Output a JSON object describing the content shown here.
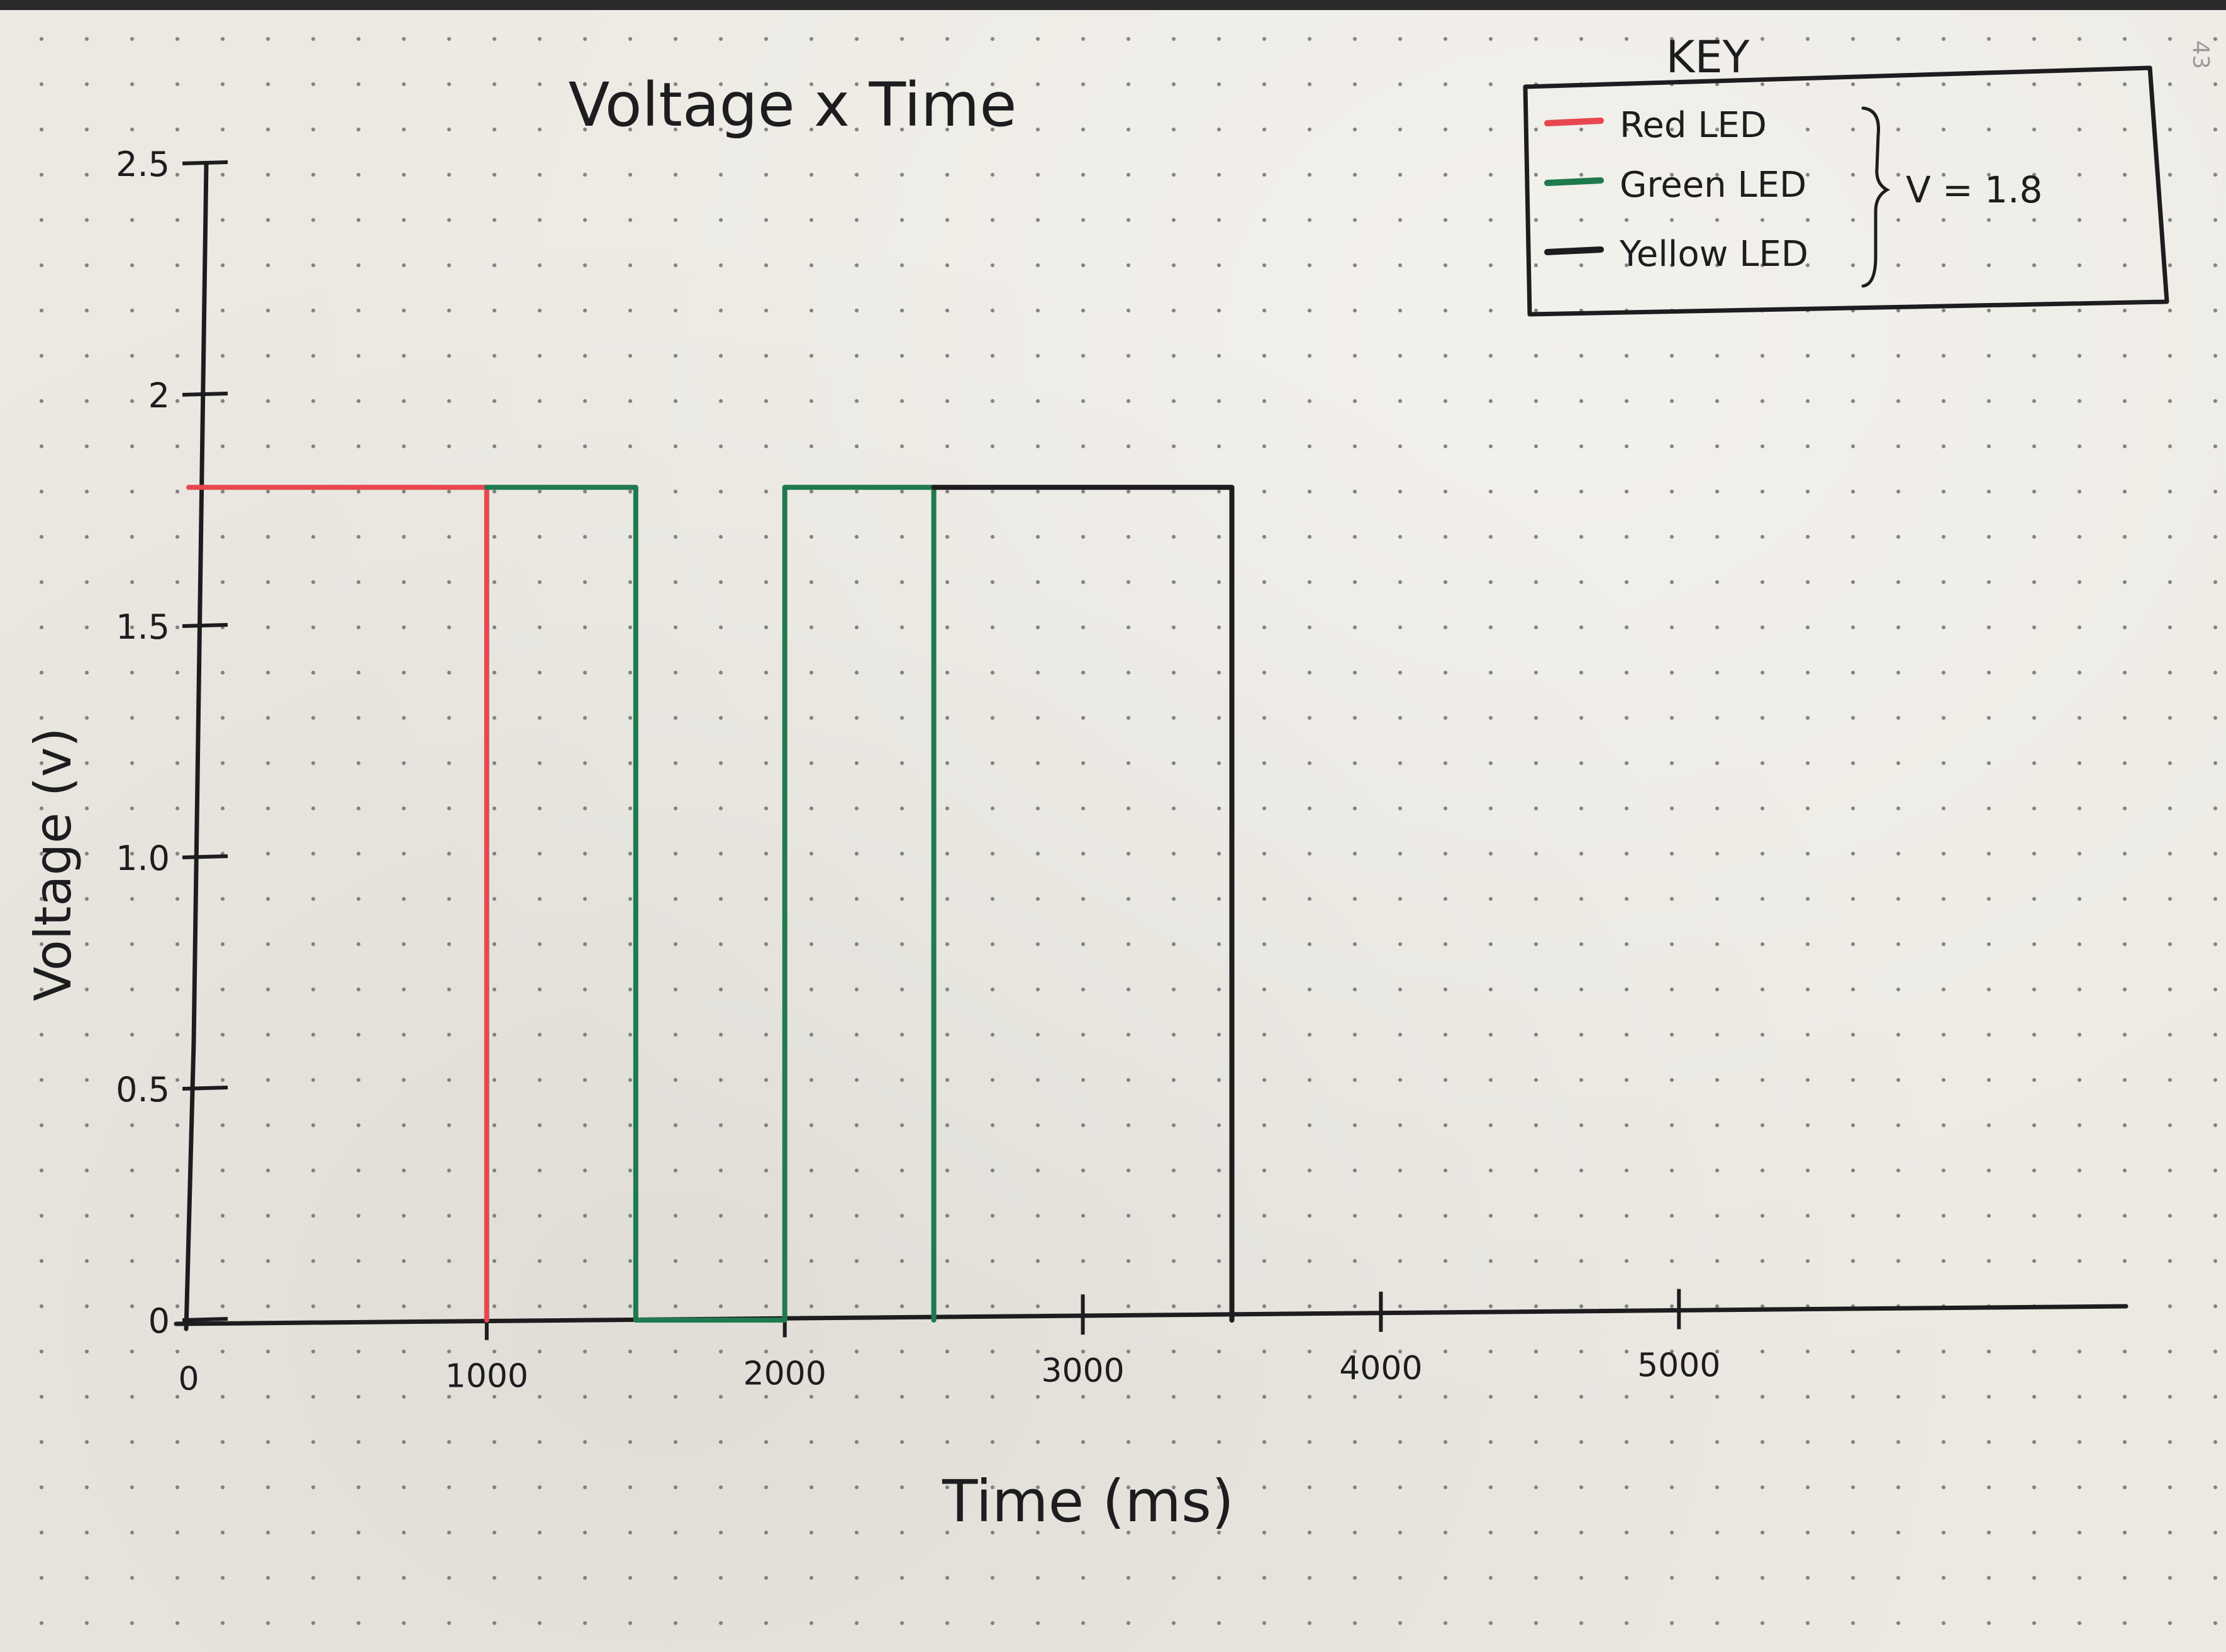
{
  "page_number": "43",
  "chart_data": {
    "type": "line",
    "title": "Voltage x Time",
    "xlabel": "Time (ms)",
    "ylabel": "Voltage (v)",
    "xlim": [
      0,
      6500
    ],
    "ylim": [
      0,
      2.5
    ],
    "x_ticks": [
      {
        "value": 0,
        "label": "0"
      },
      {
        "value": 1000,
        "label": "1000"
      },
      {
        "value": 2000,
        "label": "2000"
      },
      {
        "value": 3000,
        "label": "3000"
      },
      {
        "value": 4000,
        "label": "4000"
      },
      {
        "value": 5000,
        "label": "5000"
      }
    ],
    "y_ticks": [
      {
        "value": 0,
        "label": "0"
      },
      {
        "value": 0.5,
        "label": "0.5"
      },
      {
        "value": 1.0,
        "label": "1.0"
      },
      {
        "value": 1.5,
        "label": "1.5"
      },
      {
        "value": 2,
        "label": "2"
      },
      {
        "value": 2.5,
        "label": "2.5"
      }
    ],
    "grid": false,
    "legend": {
      "title": "KEY",
      "placement": "top-right",
      "note": "V = 1.8"
    },
    "series": [
      {
        "name": "Red LED",
        "color": "#e8474f",
        "segments": [
          [
            [
              0,
              1.8
            ],
            [
              1000,
              1.8
            ],
            [
              1000,
              0
            ]
          ]
        ]
      },
      {
        "name": "Green LED",
        "color": "#1f7a4d",
        "segments": [
          [
            [
              1000,
              1.8
            ],
            [
              1500,
              1.8
            ],
            [
              1500,
              0
            ],
            [
              2000,
              0
            ],
            [
              2000,
              1.8
            ],
            [
              2500,
              1.8
            ],
            [
              2500,
              0
            ]
          ]
        ]
      },
      {
        "name": "Yellow LED",
        "color": "#1d1d1f",
        "segments": [
          [
            [
              2500,
              1.8
            ],
            [
              3500,
              1.8
            ],
            [
              3500,
              0
            ]
          ]
        ]
      }
    ]
  }
}
